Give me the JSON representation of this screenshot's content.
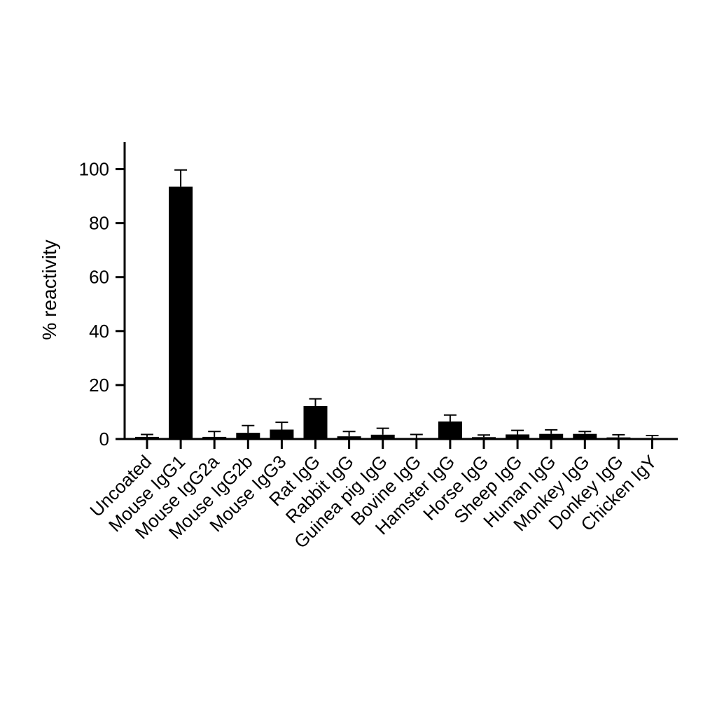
{
  "chart_data": {
    "type": "bar",
    "title": "",
    "xlabel": "",
    "ylabel": "% reactivity",
    "ylim": [
      0,
      110
    ],
    "yticks": [
      0,
      20,
      40,
      60,
      80,
      100
    ],
    "grid": false,
    "legend": "none",
    "bar_color": "#000000",
    "categories": [
      "Uncoated",
      "Mouse IgG1",
      "Mouse IgG2a",
      "Mouse IgG2b",
      "Mouse IgG3",
      "Rat IgG",
      "Rabbit IgG",
      "Guinea pig IgG",
      "Bovine IgG",
      "Hamster IgG",
      "Horse IgG",
      "Sheep IgG",
      "Human IgG",
      "Monkey IgG",
      "Donkey IgG",
      "Chicken IgY"
    ],
    "values": [
      0.8,
      93.5,
      0.8,
      2.3,
      3.5,
      12.2,
      1.0,
      1.6,
      0.2,
      6.5,
      0.7,
      1.7,
      1.9,
      1.9,
      0.6,
      0.2
    ],
    "errors": [
      0.9,
      6.2,
      2.0,
      2.7,
      2.7,
      2.7,
      1.8,
      2.4,
      1.5,
      2.4,
      0.8,
      1.5,
      1.5,
      0.9,
      1.0,
      1.1
    ]
  }
}
